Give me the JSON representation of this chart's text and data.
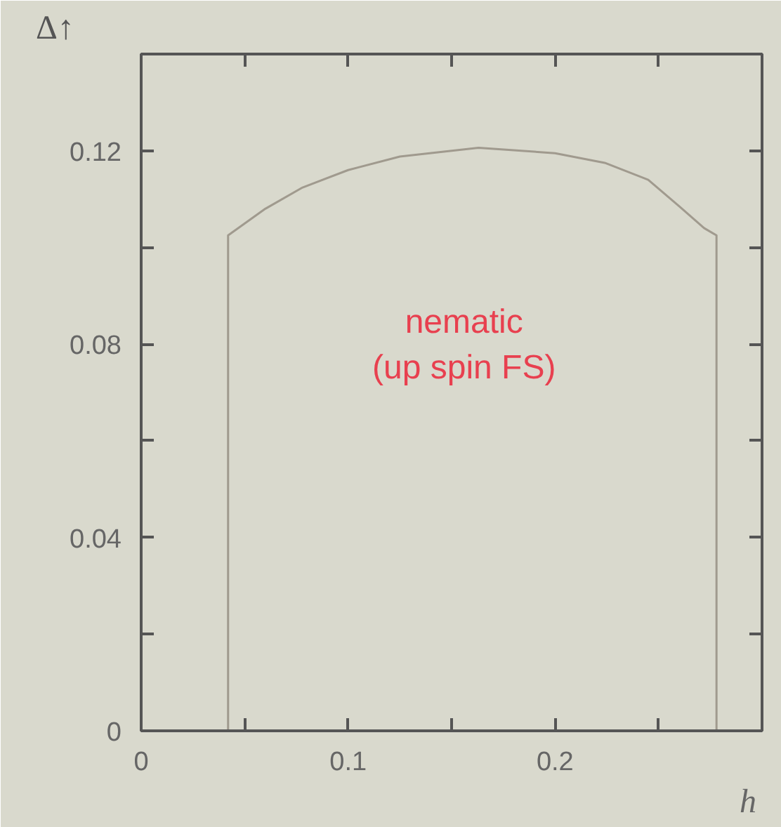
{
  "chart_data": {
    "type": "line",
    "xlabel": "h",
    "ylabel": "Δ↑",
    "x": [
      0.042,
      0.042,
      0.06,
      0.078,
      0.1,
      0.125,
      0.163,
      0.2,
      0.224,
      0.245,
      0.26,
      0.272,
      0.278,
      0.278
    ],
    "series": [
      {
        "color": "#a09a8e",
        "values": [
          0,
          0.1025,
          0.108,
          0.1124,
          0.116,
          0.1188,
          0.1206,
          0.1195,
          0.1175,
          0.114,
          0.1085,
          0.104,
          0.1025,
          0
        ]
      }
    ],
    "xlim": [
      0,
      0.3
    ],
    "ylim": [
      0,
      0.14
    ],
    "xticks": [
      0,
      {
        "value": 0.05,
        "label": null
      },
      0.1,
      {
        "value": 0.15,
        "label": null
      },
      0.2,
      {
        "value": 0.25,
        "label": null
      }
    ],
    "yticks": [
      0,
      {
        "value": 0.02,
        "label": null
      },
      0.04,
      {
        "value": 0.06,
        "label": null
      },
      0.08,
      {
        "value": 0.1,
        "label": null
      },
      0.12
    ],
    "annotations": [
      "nematic\n(up spin FS)"
    ],
    "grid": false,
    "marker": "none",
    "line_style": "solid"
  }
}
